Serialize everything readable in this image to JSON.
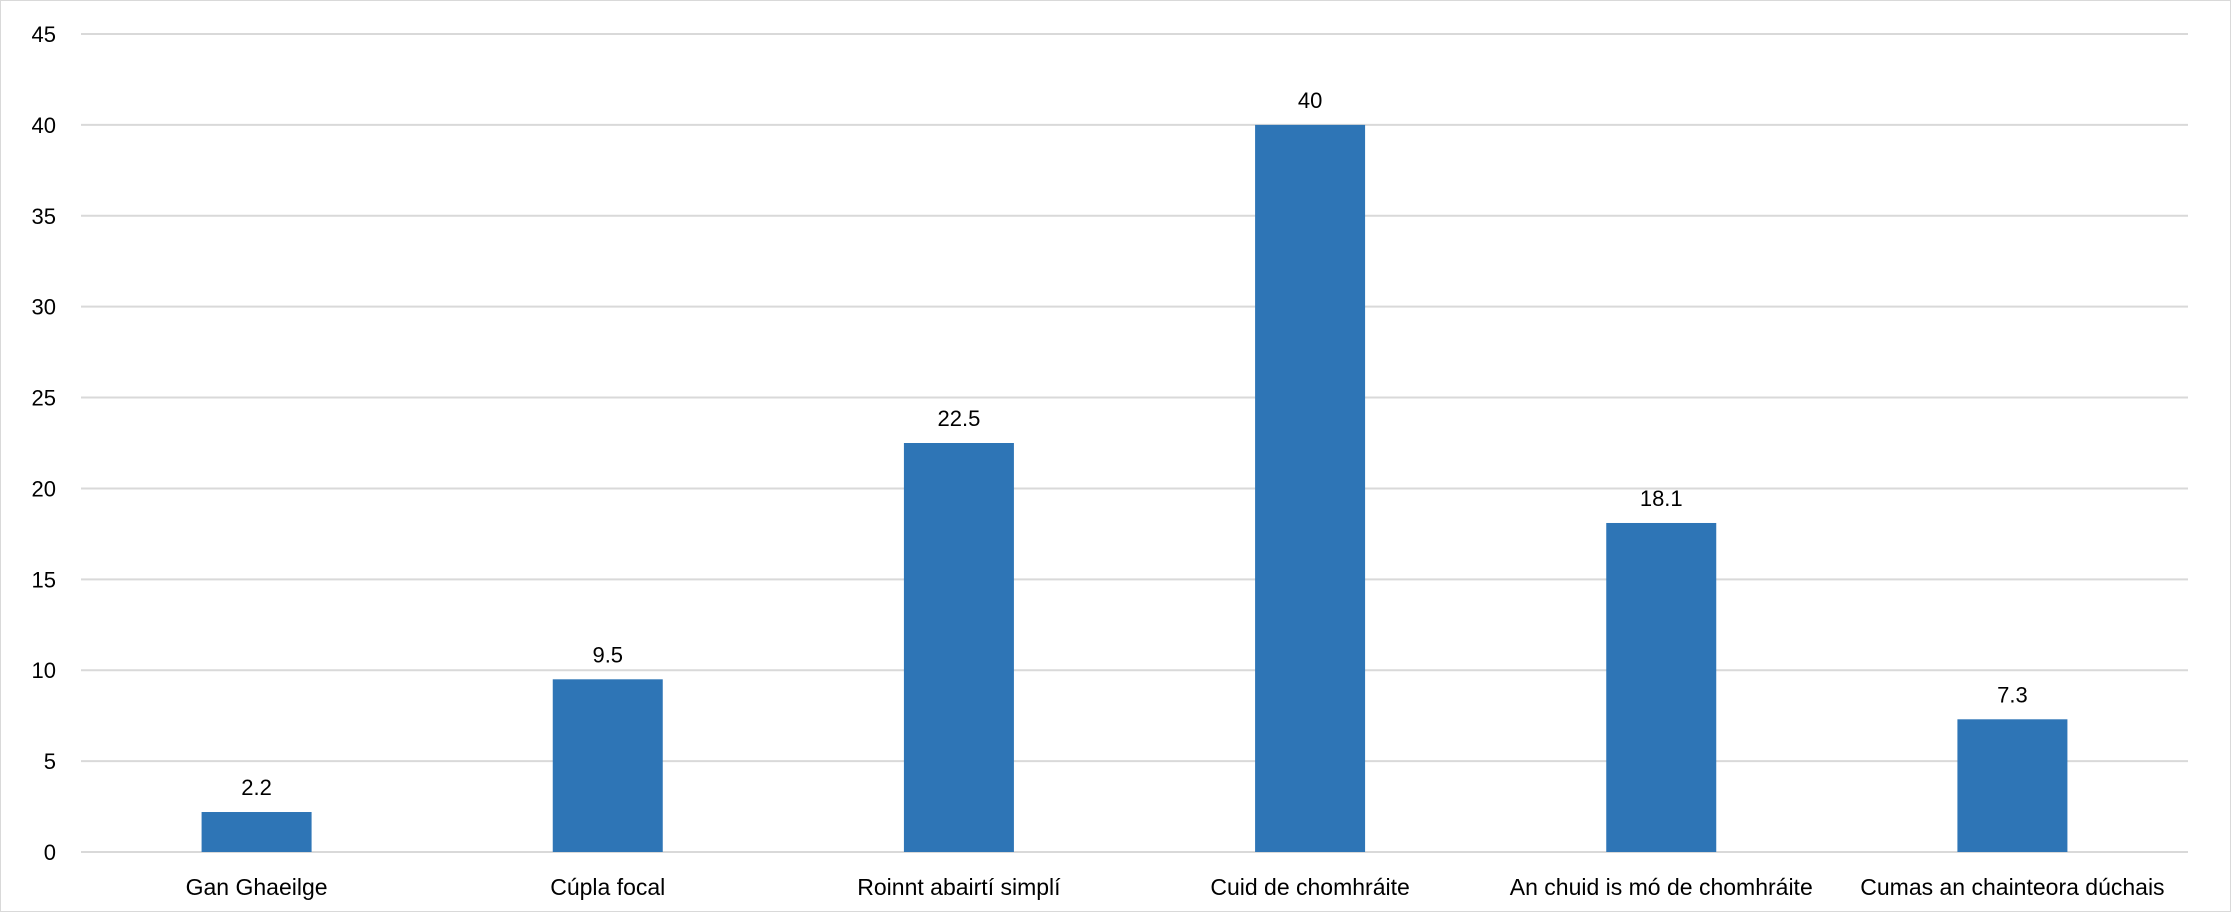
{
  "chart_data": {
    "type": "bar",
    "categories": [
      "Gan Ghaeilge",
      "Cúpla focal",
      "Roinnt abairtí simplí",
      "Cuid de chomhráite",
      "An chuid is mó de chomhráite",
      "Cumas an chainteora dúchais"
    ],
    "values": [
      2.2,
      9.5,
      22.5,
      40,
      18.1,
      7.3
    ],
    "value_labels": [
      "2.2",
      "9.5",
      "22.5",
      "40",
      "18.1",
      "7.3"
    ],
    "ylim": [
      0,
      45
    ],
    "yticks": [
      0,
      5,
      10,
      15,
      20,
      25,
      30,
      35,
      40,
      45
    ],
    "ytick_labels": [
      "0",
      "5",
      "10",
      "15",
      "20",
      "25",
      "30",
      "35",
      "40",
      "45"
    ],
    "grid": true,
    "legend": "none",
    "bar_color": "#2e75b6",
    "gridline_color": "#d9d9d9"
  }
}
